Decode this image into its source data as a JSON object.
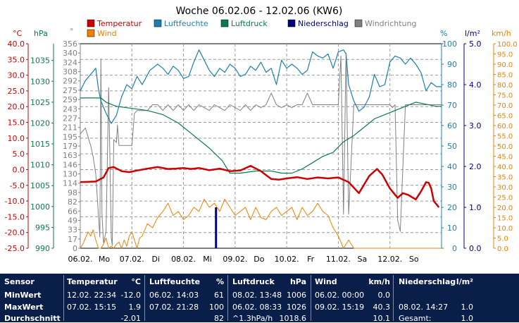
{
  "chart_data": {
    "type": "line",
    "title": "Woche 06.02.06 - 12.02.06 (KW6)",
    "x_labels": [
      "06.02.",
      "Mo",
      "07.02.",
      "Di",
      "08.02.",
      "Mi",
      "09.02.",
      "Do",
      "10.02.",
      "Fr",
      "11.02.",
      "Sa",
      "12.02.",
      "So"
    ],
    "x_ticks": [
      {
        "date": "06.02.",
        "day": "Mo"
      },
      {
        "date": "07.02.",
        "day": "Di"
      },
      {
        "date": "08.02.",
        "day": "Mi"
      },
      {
        "date": "09.02.",
        "day": "Do"
      },
      {
        "date": "10.02.",
        "day": "Fr"
      },
      {
        "date": "11.02.",
        "day": "Sa"
      },
      {
        "date": "12.02.",
        "day": "So"
      }
    ],
    "axes": {
      "temperature": {
        "unit": "°C",
        "min": -25,
        "max": 40,
        "ticks": [
          "40.0",
          "35.0",
          "30.0",
          "25.0",
          "20.0",
          "15.0",
          "10.0",
          "5.0",
          "0.0",
          "-5.0",
          "-10.0",
          "-15.0",
          "-20.0",
          "-25.0"
        ]
      },
      "pressure": {
        "unit": "hPa",
        "min": 990,
        "max": 1039,
        "ticks": [
          "1035",
          "1030",
          "1025",
          "1020",
          "1015",
          "1010",
          "1005",
          "1000",
          "995",
          "990"
        ]
      },
      "direction": {
        "unit": "°",
        "ticks": [
          "356",
          "340",
          "324",
          "308",
          "292",
          "275",
          "259",
          "243",
          "227",
          "211",
          "195",
          "179",
          "163",
          "146",
          "130",
          "114",
          "98",
          "82",
          "66",
          "49",
          "33",
          "17",
          "0"
        ]
      },
      "humidity": {
        "unit": "%",
        "min": 0,
        "max": 100,
        "ticks": [
          "100",
          "90",
          "80",
          "70",
          "60",
          "50",
          "40",
          "30",
          "20",
          "10",
          "0"
        ]
      },
      "rain": {
        "unit": "l/m²",
        "min": 0,
        "max": 5,
        "ticks": [
          "5.0",
          "4.0",
          "3.0",
          "2.0",
          "1.0",
          "0.0"
        ]
      },
      "wind": {
        "unit": "km/h",
        "min": 0,
        "max": 100,
        "ticks": [
          "100.0",
          "95.0",
          "90.0",
          "85.0",
          "80.0",
          "75.0",
          "70.0",
          "65.0",
          "60.0",
          "55.0",
          "50.0",
          "45.0",
          "40.0",
          "35.0",
          "30.0",
          "25.0",
          "20.0",
          "15.0",
          "10.0",
          "5.0",
          "0.0"
        ]
      }
    },
    "legend": [
      {
        "name": "Temperatur",
        "color": "#cc0000"
      },
      {
        "name": "Luftfeuchte",
        "color": "#1a7fb0"
      },
      {
        "name": "Luftdruck",
        "color": "#0a7a4a"
      },
      {
        "name": "Niederschlag",
        "color": "#00007f"
      },
      {
        "name": "Windrichtung",
        "color": "#808080"
      },
      {
        "name": "Wind",
        "color": "#f08000"
      }
    ],
    "series": [
      {
        "name": "Temperatur",
        "axis": "temperature",
        "x": [
          0,
          0.15,
          0.3,
          0.45,
          0.55,
          0.65,
          0.8,
          0.95,
          1.1,
          1.3,
          1.5,
          1.7,
          1.85,
          2.0,
          2.15,
          2.3,
          2.5,
          2.7,
          2.9,
          3.1,
          3.3,
          3.5,
          3.7,
          3.85,
          4.0,
          4.2,
          4.4,
          4.6,
          4.8,
          5.0,
          5.2,
          5.4,
          5.6,
          5.75,
          5.85,
          6.0,
          6.15,
          6.25,
          6.35,
          6.5,
          6.6,
          6.7,
          6.75,
          6.8,
          6.85,
          6.95
        ],
        "y": [
          -4,
          -3.9,
          -3.8,
          -2.5,
          0.5,
          0.8,
          -0.5,
          -0.8,
          -0.3,
          0.3,
          0.8,
          0.2,
          0.3,
          0.5,
          0.2,
          0.5,
          -0.2,
          0.3,
          -0.5,
          -0.3,
          1.2,
          -0.5,
          -3,
          -3.2,
          -2.8,
          -2.4,
          -3.0,
          -2.5,
          -2.8,
          -2.5,
          -4,
          -7.5,
          -2,
          0.2,
          -1.5,
          -6,
          -9,
          -7.5,
          -8.0,
          -9.5,
          -7,
          -4,
          -4.2,
          -6,
          -10,
          -12
        ]
      },
      {
        "name": "Luftfeuchte",
        "axis": "humidity",
        "x": [
          0,
          0.1,
          0.2,
          0.3,
          0.35,
          0.4,
          0.5,
          0.6,
          0.7,
          0.8,
          0.9,
          1.0,
          1.1,
          1.2,
          1.35,
          1.5,
          1.6,
          1.7,
          1.8,
          1.9,
          2.0,
          2.1,
          2.2,
          2.3,
          2.4,
          2.5,
          2.6,
          2.7,
          2.8,
          2.9,
          3.0,
          3.1,
          3.2,
          3.3,
          3.4,
          3.5,
          3.6,
          3.7,
          3.8,
          3.9,
          4.0,
          4.1,
          4.2,
          4.3,
          4.4,
          4.5,
          4.6,
          4.7,
          4.8,
          4.9,
          5.0,
          5.1,
          5.15,
          5.2,
          5.3,
          5.4,
          5.5,
          5.6,
          5.7,
          5.8,
          5.9,
          6.0,
          6.1,
          6.2,
          6.3,
          6.4,
          6.5,
          6.6,
          6.7,
          6.8,
          6.9,
          7.0
        ],
        "y": [
          77,
          82,
          85,
          88,
          78,
          72,
          66,
          61,
          65,
          74,
          80,
          78,
          84,
          80,
          87,
          90,
          88,
          85,
          89,
          87,
          83,
          84,
          91,
          97,
          92,
          87,
          84,
          88,
          86,
          90,
          88,
          84,
          85,
          89,
          87,
          91,
          86,
          88,
          80,
          92,
          88,
          90,
          88,
          85,
          87,
          96,
          94,
          93,
          95,
          88,
          96,
          97,
          95,
          80,
          72,
          67,
          69,
          74,
          85,
          79,
          80,
          91,
          94,
          93,
          90,
          93,
          90,
          86,
          77,
          81,
          79,
          79
        ]
      },
      {
        "name": "Luftdruck",
        "axis": "pressure",
        "x": [
          0,
          0.4,
          0.5,
          0.7,
          1.0,
          1.3,
          1.6,
          1.9,
          2.2,
          2.5,
          2.75,
          2.9,
          3.1,
          3.4,
          3.7,
          3.9,
          4.1,
          4.3,
          4.5,
          4.7,
          4.9,
          5.1,
          5.3,
          5.5,
          5.7,
          5.9,
          6.1,
          6.3,
          6.5,
          6.7,
          6.9,
          7.0
        ],
        "y": [
          1026,
          1026,
          1025,
          1024,
          1023.5,
          1023,
          1022,
          1020,
          1017,
          1014,
          1011,
          1008,
          1008,
          1008.5,
          1008.5,
          1008,
          1008,
          1009,
          1010.5,
          1012,
          1013,
          1015.5,
          1017,
          1019,
          1021,
          1022,
          1023,
          1024,
          1025,
          1024.5,
          1024,
          1024
        ]
      },
      {
        "name": "Niederschlag",
        "axis": "rain",
        "type": "bar",
        "x": [
          2.63
        ],
        "y": [
          1.0
        ]
      },
      {
        "name": "Windrichtung",
        "axis": "direction",
        "x": [
          0,
          0.1,
          0.15,
          0.2,
          0.25,
          0.3,
          0.35,
          0.38,
          0.4,
          0.42,
          0.45,
          0.5,
          0.55,
          0.6,
          0.62,
          0.65,
          0.7,
          0.72,
          0.75,
          0.8,
          0.85,
          0.9,
          1.0,
          1.05,
          1.1,
          1.2,
          1.3,
          1.4,
          1.5,
          1.6,
          1.7,
          1.8,
          1.9,
          2.0,
          2.1,
          2.2,
          2.3,
          2.4,
          2.5,
          2.6,
          2.7,
          2.8,
          2.9,
          3.0,
          3.1,
          3.2,
          3.3,
          3.4,
          3.5,
          3.6,
          3.7,
          3.8,
          3.9,
          4.0,
          4.1,
          4.2,
          4.3,
          4.4,
          4.5,
          4.6,
          4.7,
          4.8,
          4.9,
          5.0,
          5.05,
          5.1,
          5.15,
          5.2,
          5.3,
          5.4,
          5.5,
          5.6,
          5.7,
          5.8,
          5.9,
          6.0,
          6.05,
          6.1,
          6.15,
          6.2,
          6.3,
          6.4,
          6.5,
          6.6,
          6.7,
          6.8,
          6.9,
          7.0
        ],
        "y": [
          200,
          210,
          195,
          180,
          160,
          130,
          60,
          20,
          330,
          60,
          10,
          30,
          280,
          20,
          5,
          190,
          185,
          215,
          180,
          180,
          180,
          180,
          180,
          235,
          240,
          240,
          240,
          250,
          250,
          240,
          250,
          240,
          250,
          240,
          250,
          240,
          250,
          245,
          240,
          250,
          245,
          240,
          250,
          245,
          240,
          250,
          240,
          250,
          245,
          250,
          270,
          250,
          245,
          250,
          245,
          250,
          250,
          270,
          250,
          250,
          250,
          250,
          250,
          250,
          335,
          60,
          340,
          60,
          250,
          250,
          250,
          250,
          250,
          250,
          250,
          250,
          245,
          250,
          50,
          30,
          250,
          250,
          250,
          250,
          250,
          250,
          250,
          250
        ]
      },
      {
        "name": "Wind",
        "axis": "wind",
        "x": [
          0,
          0.05,
          0.1,
          0.15,
          0.2,
          0.25,
          0.3,
          0.35,
          0.4,
          0.45,
          0.5,
          0.55,
          0.6,
          0.65,
          0.7,
          0.75,
          0.8,
          0.85,
          0.9,
          0.95,
          1.0,
          1.05,
          1.1,
          1.15,
          1.2,
          1.3,
          1.4,
          1.5,
          1.6,
          1.7,
          1.8,
          1.9,
          2.0,
          2.1,
          2.2,
          2.3,
          2.4,
          2.5,
          2.6,
          2.7,
          2.8,
          2.9,
          3.0,
          3.1,
          3.2,
          3.3,
          3.4,
          3.5,
          3.6,
          3.7,
          3.8,
          3.9,
          4.0,
          4.1,
          4.2,
          4.3,
          4.4,
          4.5,
          4.6,
          4.7,
          4.8,
          4.9,
          5.0,
          5.1,
          5.2,
          5.3,
          5.4,
          5.5,
          5.6,
          5.7,
          5.8,
          5.9,
          6.0,
          6.1,
          6.2,
          6.3,
          6.4,
          6.5,
          6.6,
          6.7,
          6.8,
          6.9,
          7.0
        ],
        "y": [
          0,
          2,
          5,
          8,
          6,
          9,
          4,
          0,
          0,
          2,
          5,
          0,
          1,
          0,
          2,
          3,
          0,
          4,
          1,
          6,
          8,
          4,
          0,
          5,
          6,
          12,
          10,
          15,
          18,
          22,
          16,
          18,
          14,
          16,
          20,
          18,
          24,
          20,
          22,
          18,
          24,
          20,
          16,
          18,
          20,
          14,
          20,
          15,
          14,
          18,
          20,
          16,
          18,
          20,
          14,
          20,
          16,
          18,
          22,
          18,
          16,
          10,
          6,
          0,
          4,
          0,
          0,
          0,
          0,
          0,
          0,
          0,
          0,
          0,
          0,
          0,
          0,
          0,
          0,
          0,
          0,
          0,
          0
        ]
      }
    ]
  },
  "stats": {
    "headers": {
      "sensor": "Sensor",
      "temperature": "Temperatur",
      "temperature_unit": "°C",
      "humidity": "Luftfeuchte",
      "humidity_unit": "%",
      "pressure": "Luftdruck",
      "pressure_unit": "hPa",
      "wind": "Wind",
      "wind_unit": "km/h",
      "rain": "Niederschlag",
      "rain_unit": "l/m²"
    },
    "rows": [
      {
        "label": "MinWert",
        "temp_time": "12.02.  22:34",
        "temp_val": "-12.0",
        "hum_time": "06.02.  14:03",
        "hum_val": "61",
        "pres_time": "08.02.  13:48",
        "pres_val": "1006",
        "wind_time": "06.02.  00:00",
        "wind_val": "0.0",
        "rain_time": "",
        "rain_val": ""
      },
      {
        "label": "MaxWert",
        "temp_time": "07.02.  15:15",
        "temp_val": "1.9",
        "hum_time": "07.02.  21:28",
        "hum_val": "100",
        "pres_time": "06.02.  08:33",
        "pres_val": "1026",
        "wind_time": "09.02.  15:19",
        "wind_val": "40.3",
        "rain_time": "08.02.  14:27",
        "rain_val": "1.0"
      },
      {
        "label": "Durchschnitt",
        "temp_time": "",
        "temp_val": "-2.01",
        "hum_time": "",
        "hum_val": "82",
        "pres_time": "^1.3hPa/h",
        "pres_val": "1018.6",
        "wind_time": "",
        "wind_val": "10.1",
        "rain_time": "Gesamt:",
        "rain_val": "1.0"
      }
    ]
  }
}
